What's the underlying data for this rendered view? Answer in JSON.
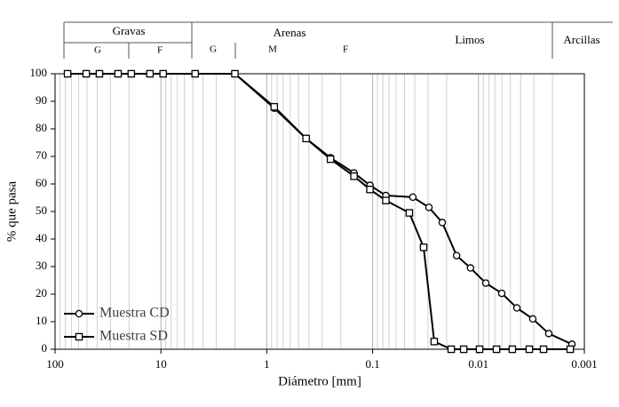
{
  "chart_data": {
    "type": "line",
    "x_scale": "log",
    "grid": "x-minor",
    "x_label": "Diámetro [mm]",
    "y_label": "% que pasa",
    "xlim": [
      100,
      0.001
    ],
    "xticks": [
      100,
      10,
      1,
      0.1,
      0.01,
      0.001
    ],
    "ylim": [
      0,
      100
    ],
    "yticks": [
      0,
      10,
      20,
      30,
      40,
      50,
      60,
      70,
      80,
      90,
      100
    ],
    "legend": "lower-left",
    "soil_classes": [
      {
        "name": "Gravas",
        "subdivisions": [
          "G",
          "F"
        ]
      },
      {
        "name": "Arenas",
        "subdivisions": [
          "G",
          "M",
          "F"
        ]
      },
      {
        "name": "Limos",
        "subdivisions": []
      },
      {
        "name": "Arcillas",
        "subdivisions": []
      }
    ],
    "series": [
      {
        "name": "Muestra CD",
        "color": "#000000",
        "marker": "circle",
        "x": [
          76.2,
          50.8,
          38.1,
          25.4,
          19.05,
          12.7,
          9.525,
          4.75,
          2.0,
          0.85,
          0.425,
          0.25,
          0.15,
          0.106,
          0.075,
          0.0417,
          0.0294,
          0.022,
          0.0161,
          0.0119,
          0.00853,
          0.00603,
          0.00434,
          0.00307,
          0.00217,
          0.00131
        ],
        "values": [
          100,
          100,
          100,
          100,
          100,
          100,
          100,
          100,
          100,
          87.5,
          76.5,
          69.5,
          64,
          59.5,
          55.8,
          55.2,
          51.5,
          46,
          34,
          29.5,
          24,
          20.3,
          15,
          11,
          5.7,
          1.8
        ]
      },
      {
        "name": "Muestra SD",
        "color": "#000000",
        "marker": "square",
        "x": [
          76.2,
          50.8,
          38.1,
          25.4,
          19.05,
          12.7,
          9.525,
          4.75,
          2.0,
          0.85,
          0.425,
          0.25,
          0.15,
          0.106,
          0.075,
          0.045,
          0.033,
          0.0262,
          0.0181,
          0.0138,
          0.00977,
          0.00676,
          0.00479,
          0.00331,
          0.00243,
          0.00136
        ],
        "values": [
          100,
          100,
          100,
          100,
          100,
          100,
          100,
          100,
          100,
          88,
          76.5,
          69,
          62.8,
          58,
          54,
          49.5,
          37,
          2.8,
          0,
          0,
          0,
          0,
          0,
          0,
          0,
          0
        ]
      }
    ]
  }
}
